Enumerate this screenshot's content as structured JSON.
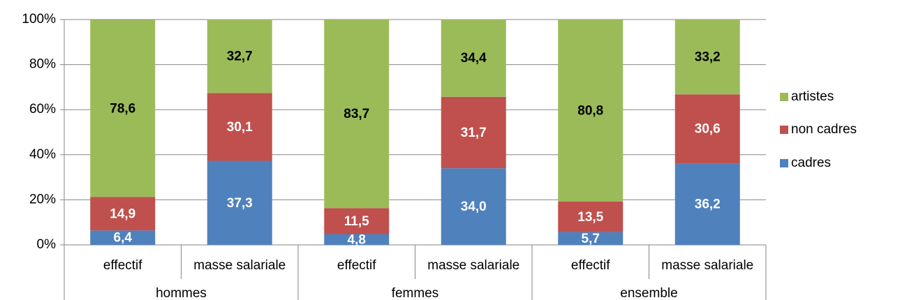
{
  "chart_data": {
    "type": "stacked_bar",
    "categories": [
      "effectif",
      "masse salariale",
      "effectif",
      "masse salariale",
      "effectif",
      "masse salariale"
    ],
    "groups": [
      "hommes",
      "femmes",
      "ensemble"
    ],
    "series": [
      {
        "name": "cadres",
        "color": "#4f81bd",
        "label_color": "#ffffff",
        "values": [
          6.4,
          37.3,
          4.8,
          34.0,
          5.7,
          36.2
        ],
        "value_labels": [
          "6,4",
          "37,3",
          "4,8",
          "34,0",
          "5,7",
          "36,2"
        ]
      },
      {
        "name": "non cadres",
        "color": "#c0504d",
        "label_color": "#ffffff",
        "values": [
          14.9,
          30.1,
          11.5,
          31.7,
          13.5,
          30.6
        ],
        "value_labels": [
          "14,9",
          "30,1",
          "11,5",
          "31,7",
          "13,5",
          "30,6"
        ]
      },
      {
        "name": "artistes",
        "color": "#9bbb59",
        "label_color": "#000000",
        "values": [
          78.6,
          32.7,
          83.7,
          34.4,
          80.8,
          33.2
        ],
        "value_labels": [
          "78,6",
          "32,7",
          "83,7",
          "34,4",
          "80,8",
          "33,2"
        ]
      }
    ],
    "ylim": [
      0,
      100
    ],
    "yticks": [
      {
        "value": 0,
        "label": "0%"
      },
      {
        "value": 20,
        "label": "20%"
      },
      {
        "value": 40,
        "label": "40%"
      },
      {
        "value": 60,
        "label": "60%"
      },
      {
        "value": 80,
        "label": "80%"
      },
      {
        "value": 100,
        "label": "100%"
      }
    ],
    "grid": true,
    "legend": "right"
  }
}
